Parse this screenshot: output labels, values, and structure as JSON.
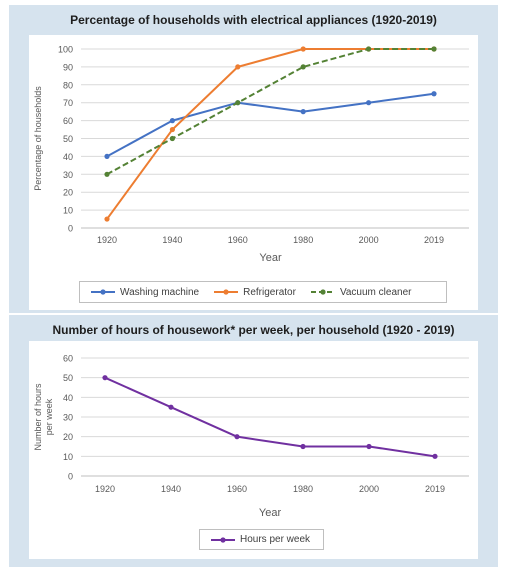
{
  "chart_data": [
    {
      "type": "line",
      "title": "Percentage of households with electrical appliances (1920-2019)",
      "xlabel": "Year",
      "ylabel": "Percentage of households",
      "categories": [
        "1920",
        "1940",
        "1960",
        "1980",
        "2000",
        "2019"
      ],
      "ylim": [
        0,
        100
      ],
      "yticks": [
        "0",
        "10",
        "20",
        "30",
        "40",
        "50",
        "60",
        "70",
        "80",
        "90",
        "100"
      ],
      "grid": true,
      "legend_position": "bottom",
      "series": [
        {
          "name": "Washing machine",
          "values": [
            40,
            60,
            70,
            65,
            70,
            75
          ],
          "color": "#4472c4",
          "dash": false
        },
        {
          "name": "Refrigerator",
          "values": [
            5,
            55,
            90,
            100,
            100,
            100
          ],
          "color": "#ed7d31",
          "dash": false
        },
        {
          "name": "Vacuum cleaner",
          "values": [
            30,
            50,
            70,
            90,
            100,
            100
          ],
          "color": "#548235",
          "dash": true
        }
      ]
    },
    {
      "type": "line",
      "title": "Number of hours of housework* per week, per household (1920 - 2019)",
      "xlabel": "Year",
      "ylabel": "Number of hours per week",
      "categories": [
        "1920",
        "1940",
        "1960",
        "1980",
        "2000",
        "2019"
      ],
      "ylim": [
        0,
        60
      ],
      "yticks": [
        "0",
        "10",
        "20",
        "30",
        "40",
        "50",
        "60"
      ],
      "grid": true,
      "legend_position": "bottom",
      "series": [
        {
          "name": "Hours per week",
          "values": [
            50,
            35,
            20,
            15,
            15,
            10
          ],
          "color": "#7030a0",
          "dash": false
        }
      ]
    }
  ]
}
